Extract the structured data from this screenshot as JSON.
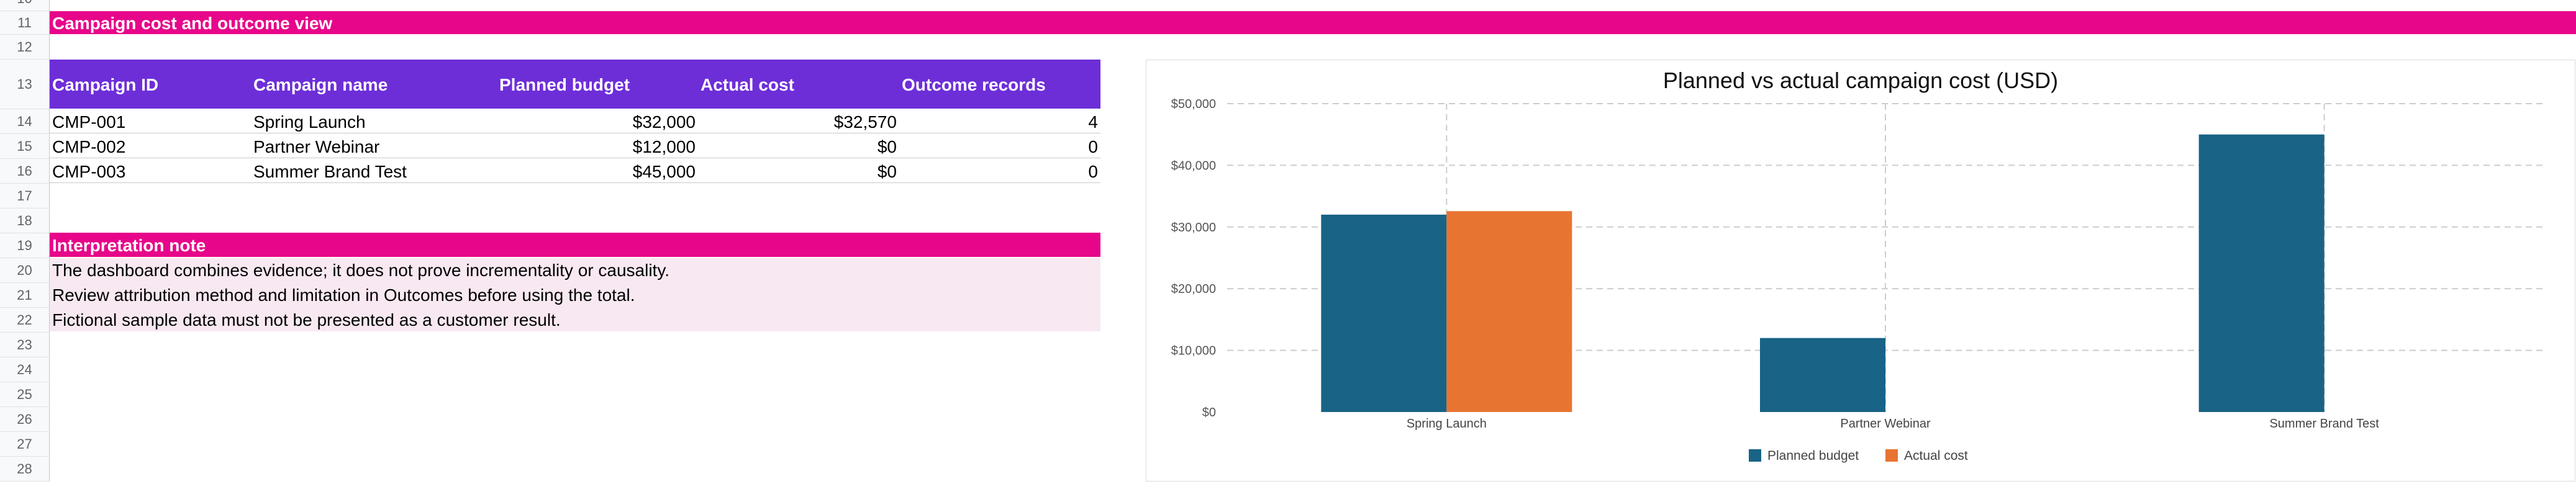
{
  "sheet": {
    "row_numbers": [
      "10",
      "11",
      "12",
      "13",
      "14",
      "15",
      "16",
      "17",
      "18",
      "19",
      "20",
      "21",
      "22",
      "23",
      "24",
      "25",
      "26",
      "27",
      "28"
    ],
    "section_title": "Campaign cost and outcome view",
    "table": {
      "headers": [
        "Campaign ID",
        "Campaign name",
        "Planned budget",
        "Actual cost",
        "Outcome records"
      ],
      "rows": [
        [
          "CMP-001",
          "Spring Launch",
          "$32,000",
          "$32,570",
          "4"
        ],
        [
          "CMP-002",
          "Partner Webinar",
          "$12,000",
          "$0",
          "0"
        ],
        [
          "CMP-003",
          "Summer Brand Test",
          "$45,000",
          "$0",
          "0"
        ]
      ]
    },
    "note": {
      "title": "Interpretation note",
      "lines": [
        "The dashboard combines evidence; it does not prove incrementality or causality.",
        "Review attribution method and limitation in Outcomes before using the total.",
        "Fictional sample data must not be presented as a customer result."
      ]
    },
    "colors": {
      "pink": "#e7058a",
      "purple": "#6d2ed8",
      "note_bg": "#f8e8f1"
    }
  },
  "chart_data": {
    "type": "bar",
    "title": "Planned vs actual campaign cost (USD)",
    "categories": [
      "Spring Launch",
      "Partner Webinar",
      "Summer Brand Test"
    ],
    "series": [
      {
        "name": "Planned budget",
        "values": [
          32000,
          12000,
          45000
        ],
        "color": "#196386"
      },
      {
        "name": "Actual cost",
        "values": [
          32570,
          0,
          0
        ],
        "color": "#e87432"
      }
    ],
    "ylim": [
      0,
      50000
    ],
    "yticks": [
      0,
      10000,
      20000,
      30000,
      40000,
      50000
    ],
    "ytick_labels": [
      "$0",
      "$10,000",
      "$20,000",
      "$30,000",
      "$40,000",
      "$50,000"
    ],
    "grid": true,
    "legend_placement": "bottom"
  }
}
